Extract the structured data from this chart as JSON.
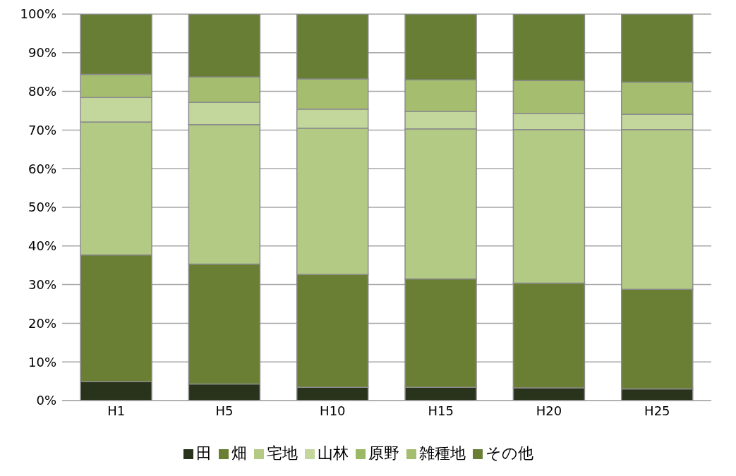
{
  "chart_data": {
    "type": "bar",
    "stacked": true,
    "categories": [
      "H1",
      "H5",
      "H10",
      "H15",
      "H20",
      "H25"
    ],
    "series": [
      {
        "name": "田",
        "color": "#29321a",
        "values": [
          4.9,
          4.3,
          3.4,
          3.4,
          3.3,
          3.0
        ]
      },
      {
        "name": "畑",
        "color": "#6a7f33",
        "values": [
          32.8,
          31.0,
          29.2,
          28.1,
          27.1,
          25.8
        ]
      },
      {
        "name": "宅地",
        "color": "#b3ca84",
        "values": [
          34.4,
          36.1,
          37.9,
          38.8,
          39.7,
          41.3
        ]
      },
      {
        "name": "山林",
        "color": "#c3d69b",
        "values": [
          6.3,
          5.8,
          4.9,
          4.5,
          4.2,
          4.0
        ]
      },
      {
        "name": "原野",
        "color": "#9bb865",
        "values": [
          0,
          0,
          0,
          0,
          0,
          0
        ]
      },
      {
        "name": "雑種地",
        "color": "#a5bd6e",
        "values": [
          6.0,
          6.5,
          7.8,
          8.2,
          8.5,
          8.3
        ]
      },
      {
        "name": "その他",
        "color": "#677e34",
        "values": [
          15.6,
          16.3,
          16.8,
          17.0,
          17.2,
          17.6
        ]
      }
    ],
    "ylim": [
      0,
      100
    ],
    "yticks": [
      {
        "value": 0,
        "label": "0%"
      },
      {
        "value": 10,
        "label": "10%"
      },
      {
        "value": 20,
        "label": "20%"
      },
      {
        "value": 30,
        "label": "30%"
      },
      {
        "value": 40,
        "label": "40%"
      },
      {
        "value": 50,
        "label": "50%"
      },
      {
        "value": 60,
        "label": "60%"
      },
      {
        "value": 70,
        "label": "70%"
      },
      {
        "value": 80,
        "label": "80%"
      },
      {
        "value": 90,
        "label": "90%"
      },
      {
        "value": 100,
        "label": "100%"
      }
    ],
    "grid": "y",
    "legend": "bottom"
  }
}
